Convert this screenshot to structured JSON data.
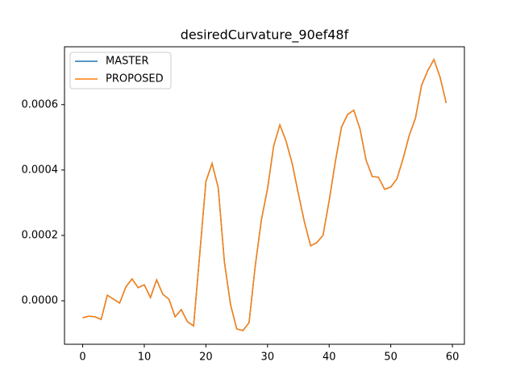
{
  "chart_data": {
    "type": "line",
    "title": "desiredCurvature_90ef48f",
    "x": [
      0,
      1,
      2,
      3,
      4,
      5,
      6,
      7,
      8,
      9,
      10,
      11,
      12,
      13,
      14,
      15,
      16,
      17,
      18,
      19,
      20,
      21,
      22,
      23,
      24,
      25,
      26,
      27,
      28,
      29,
      30,
      31,
      32,
      33,
      34,
      35,
      36,
      37,
      38,
      39,
      40,
      41,
      42,
      43,
      44,
      45,
      46,
      47,
      48,
      49,
      50,
      51,
      52,
      53,
      54,
      55,
      56,
      57,
      58,
      59
    ],
    "series": [
      {
        "name": "MASTER",
        "color": "#1f77b4",
        "values": [
          -5.2e-05,
          -4.7e-05,
          -4.9e-05,
          -5.7e-05,
          1.7e-05,
          5e-06,
          -7e-06,
          4.2e-05,
          6.7e-05,
          4e-05,
          4.9e-05,
          1e-05,
          6.4e-05,
          2e-05,
          5e-06,
          -4.9e-05,
          -2.7e-05,
          -6.4e-05,
          -7.7e-05,
          0.000143,
          0.000365,
          0.00042,
          0.000346,
          0.000119,
          -1.2e-05,
          -8.6e-05,
          -9.1e-05,
          -6.7e-05,
          0.000106,
          0.000247,
          0.000343,
          0.000474,
          0.000538,
          0.000489,
          0.00042,
          0.000328,
          0.00024,
          0.000168,
          0.000178,
          0.0002,
          0.000306,
          0.000425,
          0.000531,
          0.00057,
          0.000583,
          0.000526,
          0.00043,
          0.00038,
          0.000378,
          0.000341,
          0.000348,
          0.000373,
          0.000435,
          0.000506,
          0.000558,
          0.000659,
          0.000704,
          0.000738,
          0.000684,
          0.000605
        ]
      },
      {
        "name": "PROPOSED",
        "color": "#ff7f0e",
        "values": [
          -5.2e-05,
          -4.7e-05,
          -4.9e-05,
          -5.7e-05,
          1.7e-05,
          5e-06,
          -7e-06,
          4.2e-05,
          6.7e-05,
          4e-05,
          4.9e-05,
          1e-05,
          6.4e-05,
          2e-05,
          5e-06,
          -4.9e-05,
          -2.7e-05,
          -6.4e-05,
          -7.7e-05,
          0.000143,
          0.000365,
          0.00042,
          0.000346,
          0.000119,
          -1.2e-05,
          -8.6e-05,
          -9.1e-05,
          -6.7e-05,
          0.000106,
          0.000247,
          0.000343,
          0.000474,
          0.000538,
          0.000489,
          0.00042,
          0.000328,
          0.00024,
          0.000168,
          0.000178,
          0.0002,
          0.000306,
          0.000425,
          0.000531,
          0.00057,
          0.000583,
          0.000526,
          0.00043,
          0.00038,
          0.000378,
          0.000341,
          0.000348,
          0.000373,
          0.000435,
          0.000506,
          0.000558,
          0.000659,
          0.000704,
          0.000738,
          0.000684,
          0.000605
        ]
      }
    ],
    "xlim": [
      -2.95,
      61.95
    ],
    "xticks": [
      0,
      10,
      20,
      30,
      40,
      50,
      60
    ],
    "ylim": [
      -0.000133,
      0.000777
    ],
    "yticks": [
      {
        "value": 0,
        "label": "0.0000"
      },
      {
        "value": 0.0002,
        "label": "0.0002"
      },
      {
        "value": 0.0004,
        "label": "0.0004"
      },
      {
        "value": 0.0006,
        "label": "0.0006"
      }
    ],
    "grid": false,
    "legend": "upper left"
  }
}
